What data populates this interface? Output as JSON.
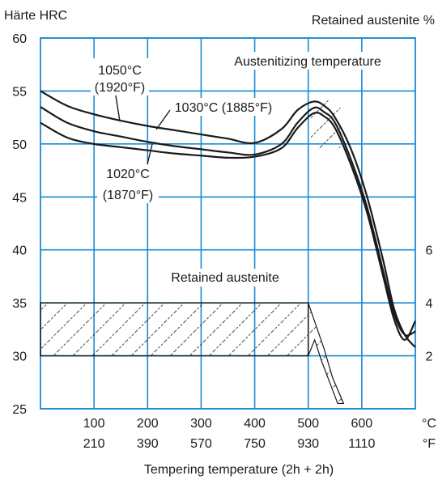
{
  "chart_data": {
    "type": "line",
    "y_left_label": "Härte HRC",
    "y_right_label": "Retained austenite %",
    "xlabel": "Tempering temperature (2h + 2h)",
    "x_unit_c": "°C",
    "x_unit_f": "°F",
    "xlim": [
      0,
      700
    ],
    "ylim": [
      25,
      60
    ],
    "x_ticks": [
      {
        "c": "100",
        "f": "210",
        "v": 100
      },
      {
        "c": "200",
        "f": "390",
        "v": 200
      },
      {
        "c": "300",
        "f": "570",
        "v": 300
      },
      {
        "c": "400",
        "f": "750",
        "v": 400
      },
      {
        "c": "500",
        "f": "930",
        "v": 500
      },
      {
        "c": "600",
        "f": "1110",
        "v": 600
      }
    ],
    "y_ticks": [
      25,
      30,
      35,
      40,
      45,
      50,
      55,
      60
    ],
    "y_right_ticks": [
      {
        "label": "2",
        "at_hrc": 30
      },
      {
        "label": "4",
        "at_hrc": 35
      },
      {
        "label": "6",
        "at_hrc": 40
      }
    ],
    "grid": true,
    "series": [
      {
        "name": "1050°C (1920°F)",
        "x": [
          0,
          50,
          100,
          150,
          200,
          250,
          300,
          350,
          400,
          450,
          480,
          510,
          530,
          550,
          580,
          610,
          640,
          660,
          680,
          700
        ],
        "y": [
          55,
          53.6,
          52.8,
          52.2,
          51.7,
          51.3,
          50.9,
          50.5,
          50.1,
          51.4,
          53.2,
          54.0,
          53.6,
          52.5,
          49.5,
          45.0,
          39.0,
          34.5,
          32.0,
          30.8
        ]
      },
      {
        "name": "1030°C (1885°F)",
        "x": [
          0,
          50,
          100,
          150,
          200,
          250,
          300,
          350,
          400,
          450,
          480,
          510,
          530,
          550,
          580,
          610,
          640,
          660,
          680,
          700
        ],
        "y": [
          53.5,
          52.0,
          51.2,
          50.7,
          50.2,
          49.8,
          49.5,
          49.2,
          49.0,
          50.0,
          52.0,
          53.4,
          53.0,
          52.0,
          48.5,
          44.0,
          38.0,
          34.0,
          32.0,
          32.3
        ]
      },
      {
        "name": "1020°C (1870°F)",
        "x": [
          0,
          50,
          100,
          150,
          200,
          250,
          300,
          350,
          400,
          450,
          480,
          510,
          530,
          550,
          580,
          610,
          640,
          660,
          680,
          700
        ],
        "y": [
          52,
          50.6,
          50.0,
          49.7,
          49.4,
          49.1,
          48.9,
          48.7,
          48.8,
          49.6,
          51.5,
          52.9,
          52.6,
          51.5,
          48.0,
          43.5,
          37.5,
          33.5,
          31.5,
          33.3
        ]
      }
    ],
    "annotations": {
      "label_1050": [
        "1050°C",
        "(1920°F)"
      ],
      "label_1030": "1030°C (1885°F)",
      "label_1020": [
        "1020°C",
        "(1870°F)"
      ],
      "austenitizing": "Austenitizing temperature",
      "retained": "Retained austenite"
    },
    "retained_austenite_band": {
      "x_start": 0,
      "x_end": 500,
      "hrc_low": 30,
      "hrc_high": 35
    },
    "colors": {
      "grid": "#1a8ad4",
      "curve": "#1a1a1a",
      "text": "#1a1a1a"
    }
  }
}
